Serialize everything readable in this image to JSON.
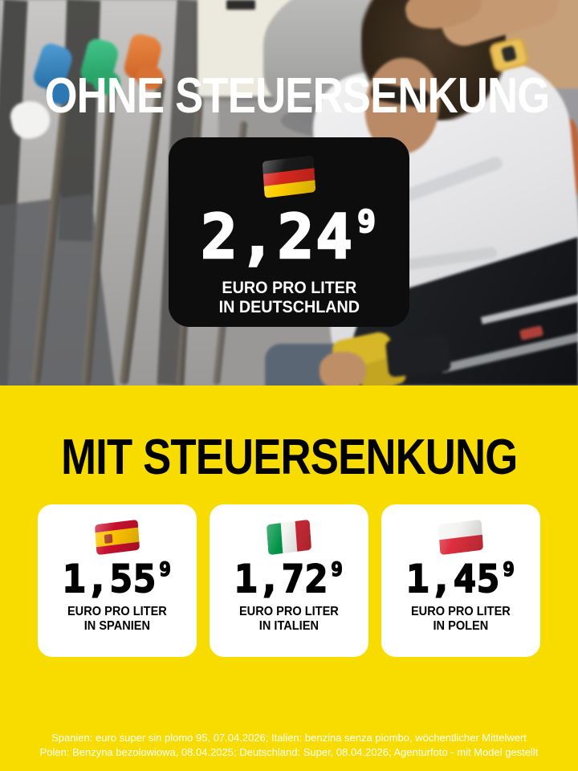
{
  "top": {
    "headline": "OHNE STEUERSENKUNG",
    "card": {
      "flag": "germany-flag",
      "price_main": "2,24",
      "price_sup": "9",
      "label_line1": "EURO PRO LITER",
      "label_line2": "IN DEUTSCHLAND"
    }
  },
  "bottom": {
    "headline": "MIT STEUERSENKUNG",
    "cards": [
      {
        "flag": "spain-flag",
        "price_main": "1,55",
        "price_sup": "9",
        "label_line1": "EURO PRO LITER",
        "label_line2": "IN SPANIEN"
      },
      {
        "flag": "italy-flag",
        "price_main": "1,72",
        "price_sup": "9",
        "label_line1": "EURO PRO LITER",
        "label_line2": "IN ITALIEN"
      },
      {
        "flag": "poland-flag",
        "price_main": "1,45",
        "price_sup": "9",
        "label_line1": "EURO PRO LITER",
        "label_line2": "IN POLEN"
      }
    ]
  },
  "footer": {
    "line1": "Spanien: euro super sin plomo 95, 07.04.2026; Italien: benzina senza piombo, wöchentlicher Mittelwert",
    "line2": "Polen: Benzyna bezolowiowa, 08.04.2025; Deutschland: Super, 08.04.2026; Agenturfoto - mit Model gestellt"
  },
  "prices_summary": {
    "unit": "Euro pro Liter",
    "countries": [
      "Deutschland",
      "Spanien",
      "Italien",
      "Polen"
    ],
    "values": [
      2.249,
      1.559,
      1.729,
      1.459
    ]
  },
  "colors": {
    "background_yellow": "#F8DC00",
    "card_black": "#0D0D0D",
    "card_white": "#FFFFFF",
    "headline_white": "#FFFFFF",
    "headline_black": "#000000"
  }
}
